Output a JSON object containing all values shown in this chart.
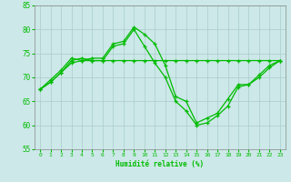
{
  "xlabel": "Humidité relative (%)",
  "background_color": "#cce8e8",
  "grid_color": "#aacccc",
  "line_color": "#00bb00",
  "ylim": [
    55,
    85
  ],
  "yticks": [
    55,
    60,
    65,
    70,
    75,
    80,
    85
  ],
  "xlim": [
    -0.5,
    23.5
  ],
  "xticks": [
    0,
    1,
    2,
    3,
    4,
    5,
    6,
    7,
    8,
    9,
    10,
    11,
    12,
    13,
    14,
    15,
    16,
    17,
    18,
    19,
    20,
    21,
    22,
    23
  ],
  "series": [
    {
      "x": [
        0,
        1,
        2,
        3,
        4,
        5,
        6,
        7,
        8,
        9,
        10,
        11,
        12,
        13,
        14,
        15,
        16,
        17,
        18,
        19,
        20,
        21,
        22,
        23
      ],
      "y": [
        67.5,
        69.5,
        71.5,
        74,
        73.5,
        74,
        74,
        77,
        77.5,
        80.5,
        79,
        77,
        72.5,
        66,
        65,
        60.5,
        61.5,
        62.5,
        65.5,
        68.5,
        68.5,
        70.5,
        72.5,
        73.5
      ]
    },
    {
      "x": [
        0,
        1,
        2,
        3,
        4,
        5,
        6,
        7,
        8,
        9,
        10,
        11,
        12,
        13,
        14,
        15,
        16,
        17,
        18,
        19,
        20,
        21,
        22,
        23
      ],
      "y": [
        67.5,
        69,
        71,
        73.5,
        74,
        73.5,
        73.5,
        76.5,
        77,
        80,
        76.5,
        73,
        70,
        65,
        63,
        60,
        60.5,
        62,
        64,
        68,
        68.5,
        70,
        72,
        73.5
      ]
    },
    {
      "x": [
        0,
        1,
        2,
        3,
        4,
        5,
        6,
        7,
        8,
        9,
        10,
        11,
        12,
        13,
        14,
        15,
        16,
        17,
        18,
        19,
        20,
        21,
        22,
        23
      ],
      "y": [
        67.5,
        69,
        71,
        73,
        73.5,
        73.5,
        73.5,
        73.5,
        73.5,
        73.5,
        73.5,
        73.5,
        73.5,
        73.5,
        73.5,
        73.5,
        73.5,
        73.5,
        73.5,
        73.5,
        73.5,
        73.5,
        73.5,
        73.5
      ]
    }
  ]
}
